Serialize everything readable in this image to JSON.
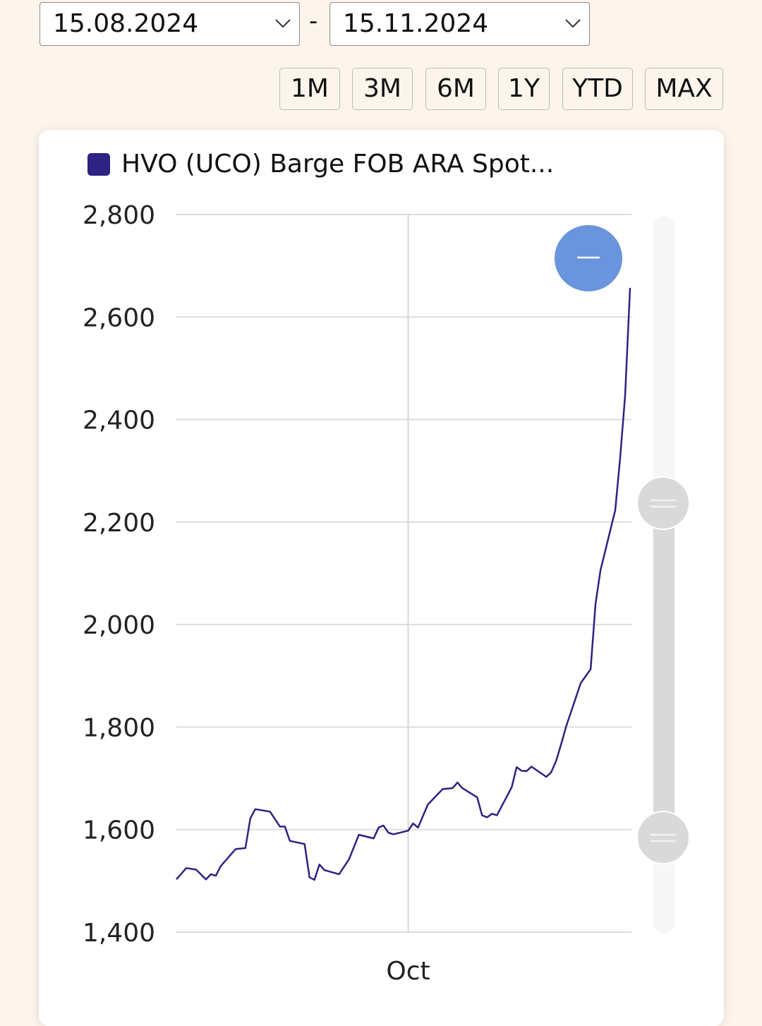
{
  "date_range": {
    "from": "15.08.2024",
    "separator": "-",
    "to": "15.11.2024"
  },
  "range_buttons": [
    "1M",
    "3M",
    "6M",
    "1Y",
    "YTD",
    "MAX"
  ],
  "colors": {
    "series": "#2e2282",
    "zoom_button": "#6895db",
    "background": "#fdf5ec",
    "grid": "#dddddd",
    "navigator": "#d9d9d9"
  },
  "zoom_button_icon": "minus-icon",
  "chart_data": {
    "type": "line",
    "title": "",
    "xlabel": "",
    "ylabel": "",
    "legend": "top-left",
    "grid": true,
    "ylim": [
      1400,
      2800
    ],
    "yticks": [
      "1,400",
      "1,600",
      "1,800",
      "2,000",
      "2,200",
      "2,400",
      "2,600",
      "2,800"
    ],
    "ytick_values": [
      1400,
      1600,
      1800,
      2000,
      2200,
      2400,
      2600,
      2800
    ],
    "xlim": [
      "2024-08-15",
      "2024-11-15"
    ],
    "xticks": [
      {
        "label": "Oct",
        "date": "2024-10-01"
      }
    ],
    "series": [
      {
        "name": "HVO (UCO) Barge FOB ARA Spot...",
        "points": [
          [
            "2024-08-15",
            1503
          ],
          [
            "2024-08-17",
            1525
          ],
          [
            "2024-08-19",
            1522
          ],
          [
            "2024-08-21",
            1503
          ],
          [
            "2024-08-22",
            1513
          ],
          [
            "2024-08-23",
            1510
          ],
          [
            "2024-08-24",
            1529
          ],
          [
            "2024-08-27",
            1562
          ],
          [
            "2024-08-29",
            1564
          ],
          [
            "2024-08-30",
            1622
          ],
          [
            "2024-08-31",
            1640
          ],
          [
            "2024-09-03",
            1635
          ],
          [
            "2024-09-05",
            1606
          ],
          [
            "2024-09-06",
            1606
          ],
          [
            "2024-09-07",
            1578
          ],
          [
            "2024-09-10",
            1572
          ],
          [
            "2024-09-11",
            1507
          ],
          [
            "2024-09-12",
            1502
          ],
          [
            "2024-09-13",
            1532
          ],
          [
            "2024-09-14",
            1521
          ],
          [
            "2024-09-17",
            1513
          ],
          [
            "2024-09-19",
            1542
          ],
          [
            "2024-09-21",
            1590
          ],
          [
            "2024-09-24",
            1583
          ],
          [
            "2024-09-25",
            1604
          ],
          [
            "2024-09-26",
            1608
          ],
          [
            "2024-09-27",
            1594
          ],
          [
            "2024-09-28",
            1591
          ],
          [
            "2024-10-01",
            1598
          ],
          [
            "2024-10-02",
            1612
          ],
          [
            "2024-10-03",
            1604
          ],
          [
            "2024-10-05",
            1649
          ],
          [
            "2024-10-08",
            1679
          ],
          [
            "2024-10-10",
            1681
          ],
          [
            "2024-10-11",
            1692
          ],
          [
            "2024-10-12",
            1681
          ],
          [
            "2024-10-15",
            1663
          ],
          [
            "2024-10-16",
            1628
          ],
          [
            "2024-10-17",
            1624
          ],
          [
            "2024-10-18",
            1631
          ],
          [
            "2024-10-19",
            1628
          ],
          [
            "2024-10-22",
            1683
          ],
          [
            "2024-10-23",
            1722
          ],
          [
            "2024-10-24",
            1715
          ],
          [
            "2024-10-25",
            1714
          ],
          [
            "2024-10-26",
            1723
          ],
          [
            "2024-10-29",
            1703
          ],
          [
            "2024-10-30",
            1712
          ],
          [
            "2024-10-31",
            1734
          ],
          [
            "2024-11-01",
            1766
          ],
          [
            "2024-11-02",
            1800
          ],
          [
            "2024-11-05",
            1886
          ],
          [
            "2024-11-07",
            1913
          ],
          [
            "2024-11-08",
            2041
          ],
          [
            "2024-11-09",
            2106
          ],
          [
            "2024-11-12",
            2223
          ],
          [
            "2024-11-13",
            2326
          ],
          [
            "2024-11-14",
            2447
          ],
          [
            "2024-11-15",
            2657
          ]
        ]
      }
    ]
  }
}
